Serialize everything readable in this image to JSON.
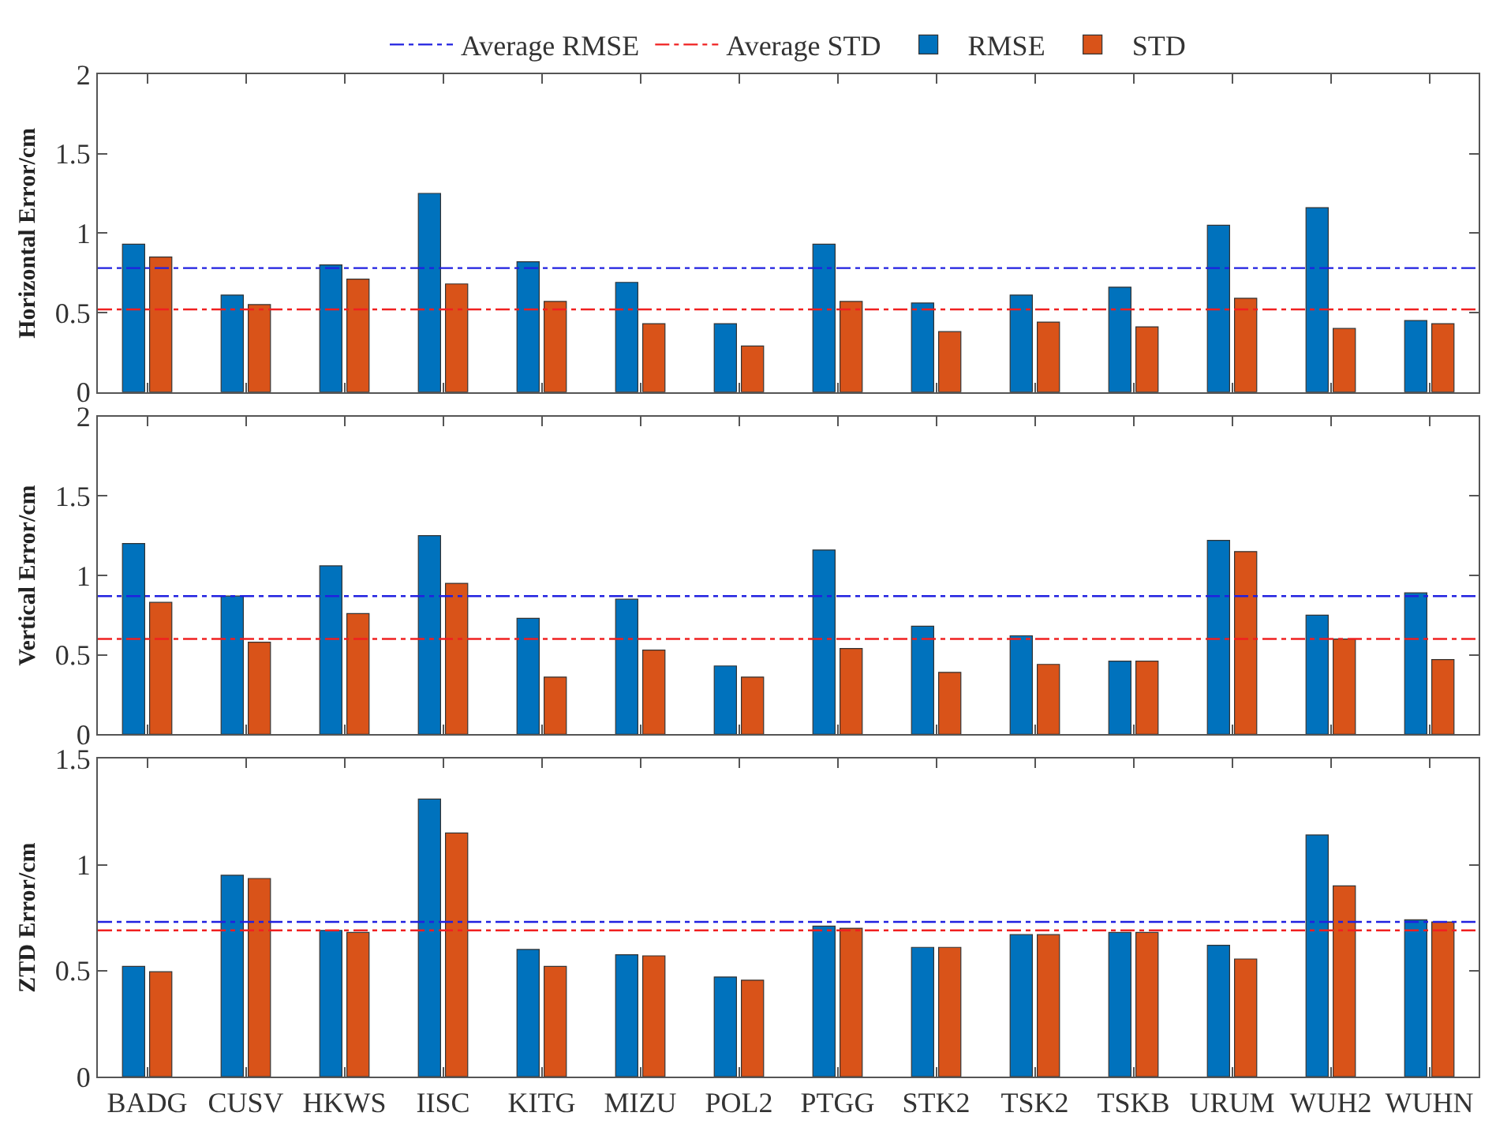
{
  "chart_data": [
    {
      "type": "bar",
      "categories": [
        "BADG",
        "CUSV",
        "HKWS",
        "IISC",
        "KITG",
        "MIZU",
        "POL2",
        "PTGG",
        "STK2",
        "TSK2",
        "TSKB",
        "URUM",
        "WUH2",
        "WUHN"
      ],
      "ylabel": "Horizontal Error/cm",
      "series": [
        {
          "name": "RMSE",
          "color": "#0072bd",
          "values": [
            0.93,
            0.61,
            0.8,
            1.25,
            0.82,
            0.69,
            0.43,
            0.93,
            0.56,
            0.61,
            0.66,
            1.05,
            1.16,
            0.45
          ]
        },
        {
          "name": "STD",
          "color": "#d95319",
          "values": [
            0.85,
            0.55,
            0.71,
            0.68,
            0.57,
            0.43,
            0.29,
            0.57,
            0.38,
            0.44,
            0.41,
            0.59,
            0.4,
            0.43
          ]
        }
      ],
      "ylim": [
        0,
        2
      ],
      "yticks": [
        0,
        0.5,
        1,
        1.5,
        2
      ],
      "ref_lines": [
        {
          "axis": "y",
          "value": 0.78,
          "label": "Average RMSE",
          "color": "#2020e0",
          "line_style": "dashdot"
        },
        {
          "axis": "y",
          "value": 0.52,
          "label": "Average STD",
          "color": "#f02020",
          "line_style": "dashdot"
        }
      ],
      "legend": "top",
      "tick_labels": "y"
    },
    {
      "type": "bar",
      "categories": [
        "BADG",
        "CUSV",
        "HKWS",
        "IISC",
        "KITG",
        "MIZU",
        "POL2",
        "PTGG",
        "STK2",
        "TSK2",
        "TSKB",
        "URUM",
        "WUH2",
        "WUHN"
      ],
      "ylabel": "Vertical Error/cm",
      "series": [
        {
          "color": "#0072bd",
          "values": [
            1.2,
            0.87,
            1.06,
            1.25,
            0.73,
            0.85,
            0.43,
            1.16,
            0.68,
            0.62,
            0.46,
            1.22,
            0.75,
            0.89
          ]
        },
        {
          "color": "#d95319",
          "values": [
            0.83,
            0.58,
            0.76,
            0.95,
            0.36,
            0.53,
            0.36,
            0.54,
            0.39,
            0.44,
            0.46,
            1.15,
            0.6,
            0.47
          ]
        }
      ],
      "ylim": [
        0,
        2
      ],
      "yticks": [
        0,
        0.5,
        1,
        1.5,
        2
      ],
      "ref_lines": [
        {
          "axis": "y",
          "value": 0.87,
          "color": "#2020e0",
          "line_style": "dashdot"
        },
        {
          "axis": "y",
          "value": 0.6,
          "color": "#f02020",
          "line_style": "dashdot"
        }
      ],
      "tick_labels": "y"
    },
    {
      "type": "bar",
      "categories": [
        "BADG",
        "CUSV",
        "HKWS",
        "IISC",
        "KITG",
        "MIZU",
        "POL2",
        "PTGG",
        "STK2",
        "TSK2",
        "TSKB",
        "URUM",
        "WUH2",
        "WUHN"
      ],
      "ylabel": "ZTD Error/cm",
      "series": [
        {
          "color": "#0072bd",
          "values": [
            0.52,
            0.95,
            0.69,
            1.31,
            0.6,
            0.575,
            0.47,
            0.71,
            0.61,
            0.67,
            0.68,
            0.62,
            1.14,
            0.74
          ]
        },
        {
          "color": "#d95319",
          "values": [
            0.495,
            0.935,
            0.68,
            1.15,
            0.52,
            0.57,
            0.455,
            0.7,
            0.61,
            0.67,
            0.68,
            0.555,
            0.9,
            0.73
          ]
        }
      ],
      "ylim": [
        0,
        1.5
      ],
      "yticks": [
        0,
        0.5,
        1,
        1.5
      ],
      "ref_lines": [
        {
          "axis": "y",
          "value": 0.73,
          "color": "#2020e0",
          "line_style": "dashdot"
        },
        {
          "axis": "y",
          "value": 0.69,
          "color": "#f02020",
          "line_style": "dashdot"
        }
      ]
    }
  ]
}
